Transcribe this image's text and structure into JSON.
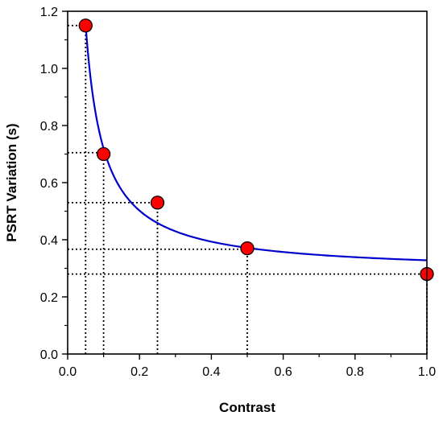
{
  "chart_data": {
    "type": "scatter",
    "title": "",
    "xlabel": "Contrast",
    "ylabel": "PSRT Variation (s)",
    "xlim": [
      0.0,
      1.0
    ],
    "ylim": [
      0.0,
      1.2
    ],
    "x_ticks": [
      "0.0",
      "0.2",
      "0.4",
      "0.6",
      "0.8",
      "1.0"
    ],
    "y_ticks": [
      "0.0",
      "0.2",
      "0.4",
      "0.6",
      "0.8",
      "1.0",
      "1.2"
    ],
    "grid": false,
    "legend": "none",
    "points": {
      "x": [
        0.05,
        0.1,
        0.25,
        0.5,
        1.0
      ],
      "y": [
        1.15,
        0.7,
        0.53,
        0.37,
        0.28
      ],
      "color": "#ff0000"
    },
    "fit_curve": {
      "x_start": 0.05,
      "x_end": 1.0,
      "color": "#0000cc",
      "reference_lines": {
        "x": [
          0.05,
          0.1,
          0.25,
          0.5,
          1.0
        ],
        "y": [
          1.15,
          0.705,
          0.53,
          0.367,
          0.28
        ]
      }
    }
  }
}
